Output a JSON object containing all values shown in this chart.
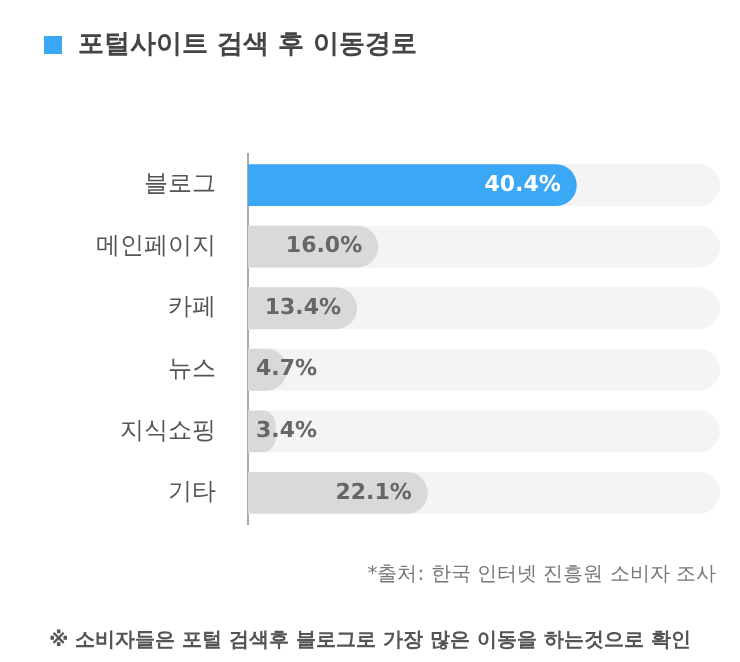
{
  "chart_data": {
    "type": "bar",
    "orientation": "horizontal",
    "title": "포털사이트 검색 후 이동경로",
    "categories": [
      "블로그",
      "메인페이지",
      "카페",
      "뉴스",
      "지식쇼핑",
      "기타"
    ],
    "values": [
      40.4,
      16.0,
      13.4,
      4.7,
      3.4,
      22.1
    ],
    "colors": [
      "#3aa8f5",
      "#d9d9d9",
      "#d9d9d9",
      "#d9d9d9",
      "#d9d9d9",
      "#d9d9d9"
    ],
    "value_labels": [
      "40.4%",
      "16.0%",
      "13.4%",
      "4.7%",
      "3.4%",
      "22.1%"
    ],
    "xlim": [
      0,
      58
    ],
    "tick_labels": "y",
    "legend": false,
    "annotations": [
      "*출처: 한국 인터넷 진흥원 소비자 조사",
      "※ 소비자들은 포털 검색후 블로그로 가장 많은 이동을 하는것으로 확인"
    ]
  }
}
